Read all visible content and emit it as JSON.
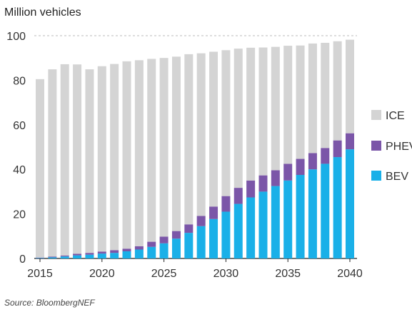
{
  "chart_data": {
    "type": "bar",
    "stacked": true,
    "title": "",
    "ylabel": "Million vehicles",
    "xlabel": "",
    "source": "Source: BloombergNEF",
    "x": [
      2015,
      2016,
      2017,
      2018,
      2019,
      2020,
      2021,
      2022,
      2023,
      2024,
      2025,
      2026,
      2027,
      2028,
      2029,
      2030,
      2031,
      2032,
      2033,
      2034,
      2035,
      2036,
      2037,
      2038,
      2039,
      2040
    ],
    "xticks": [
      "2015",
      "2020",
      "2025",
      "2030",
      "2035",
      "2040"
    ],
    "yticks": [
      "0",
      "20",
      "40",
      "60",
      "80",
      "100"
    ],
    "ylim": [
      0,
      100
    ],
    "grid": "dashed-at-100",
    "legend_position": "right",
    "series": [
      {
        "name": "BEV",
        "color": "#1ab0e8",
        "values": [
          0.2,
          0.5,
          0.9,
          1.4,
          1.7,
          2.2,
          2.5,
          3.2,
          4.0,
          5.2,
          6.8,
          8.9,
          11.5,
          14.5,
          17.7,
          21.0,
          24.5,
          27.4,
          30.0,
          32.5,
          35.0,
          37.5,
          40.0,
          42.5,
          45.5,
          49.0
        ]
      },
      {
        "name": "PHEV",
        "color": "#7b56a8",
        "values": [
          0.2,
          0.3,
          0.4,
          0.7,
          0.8,
          0.9,
          1.2,
          1.2,
          1.5,
          2.3,
          3.0,
          3.4,
          3.8,
          4.6,
          5.6,
          7.0,
          7.2,
          7.6,
          7.3,
          7.1,
          7.5,
          7.2,
          7.3,
          7.1,
          7.5,
          7.2
        ]
      },
      {
        "name": "ICE",
        "color": "#d4d4d4",
        "values": [
          80.1,
          84.1,
          85.9,
          85.0,
          82.4,
          83.2,
          83.6,
          84.1,
          83.5,
          82.1,
          80.2,
          78.3,
          76.4,
          73.0,
          69.5,
          65.5,
          62.5,
          59.6,
          57.4,
          55.4,
          53.0,
          50.9,
          49.2,
          47.2,
          44.5,
          42.0
        ]
      }
    ],
    "legend_order": [
      "ICE",
      "PHEV",
      "BEV"
    ]
  }
}
